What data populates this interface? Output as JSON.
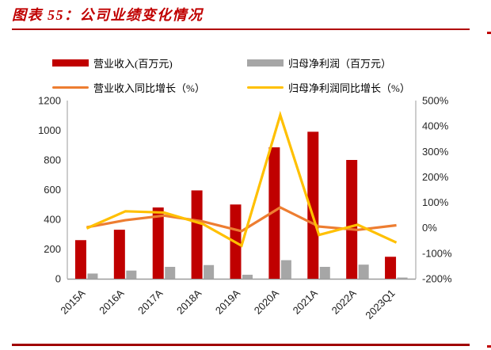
{
  "header": {
    "title": "图表 55：公司业绩变化情况"
  },
  "colors": {
    "title_red": "#C00000",
    "revenue_bar": "#C00000",
    "profit_bar": "#A6A6A6",
    "revenue_growth_line": "#ED7D31",
    "profit_growth_line": "#FFC000",
    "axis_line": "#ACACAC",
    "tick_text": "#262626",
    "footer_rule": "#A00000"
  },
  "legend": [
    {
      "label": "营业收入(百万元)",
      "swatch": "bar",
      "color": "#C00000"
    },
    {
      "label": "归母净利润（百万元）",
      "swatch": "bar",
      "color": "#A6A6A6"
    },
    {
      "label": "营业收入同比增长（%）",
      "swatch": "line",
      "color": "#ED7D31"
    },
    {
      "label": "归母净利润同比增长（%）",
      "swatch": "line",
      "color": "#FFC000"
    }
  ],
  "chart_data": {
    "type": "combo-bar-line",
    "title": "公司业绩变化情况",
    "categories": [
      "2015A",
      "2016A",
      "2017A",
      "2018A",
      "2019A",
      "2020A",
      "2021A",
      "2022A",
      "2023Q1"
    ],
    "series": [
      {
        "name": "营业收入(百万元)",
        "type": "bar",
        "axis": "left",
        "color": "#C00000",
        "values": [
          260,
          330,
          480,
          595,
          500,
          885,
          990,
          800,
          148
        ]
      },
      {
        "name": "归母净利润（百万元）",
        "type": "bar",
        "axis": "left",
        "color": "#A6A6A6",
        "values": [
          35,
          55,
          80,
          92,
          27,
          125,
          80,
          95,
          8
        ]
      },
      {
        "name": "营业收入同比增长（%）",
        "type": "line",
        "axis": "right",
        "color": "#ED7D31",
        "values": [
          2,
          30,
          48,
          25,
          -13,
          80,
          5,
          -8,
          10
        ]
      },
      {
        "name": "归母净利润同比增长（%）",
        "type": "line",
        "axis": "right",
        "color": "#FFC000",
        "values": [
          -2,
          65,
          60,
          15,
          -70,
          443,
          -28,
          12,
          -58
        ]
      }
    ],
    "left_axis": {
      "min": 0,
      "max": 1200,
      "step": 200,
      "ticks": [
        "0",
        "200",
        "400",
        "600",
        "800",
        "1000",
        "1200"
      ]
    },
    "right_axis": {
      "min": -200,
      "max": 500,
      "step": 100,
      "ticks": [
        "-200%",
        "-100%",
        "0%",
        "100%",
        "200%",
        "300%",
        "400%",
        "500%"
      ]
    },
    "grid": false,
    "legend_position": "top"
  }
}
